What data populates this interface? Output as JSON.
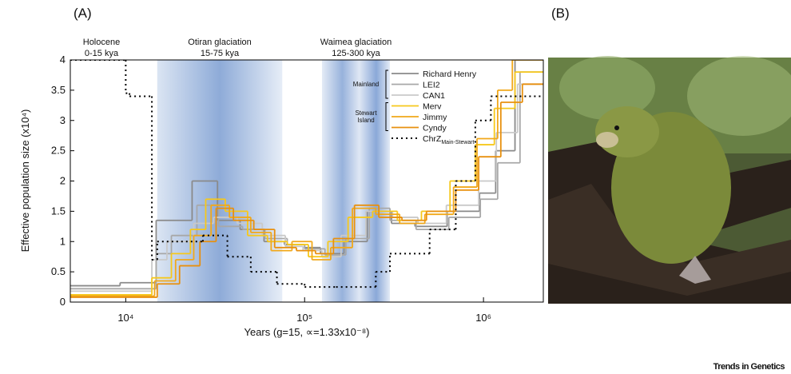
{
  "panel_a_label": "(A)",
  "panel_b_label": "(B)",
  "footer": "Trends in Genetics",
  "chart_data": {
    "type": "step-line",
    "x_label": "Years (g=15, ∝=1.33x10⁻⁸)",
    "y_label": "Effective population size (x10⁴)",
    "log_x": true,
    "xlim": [
      4900,
      2160000
    ],
    "xticks": [
      {
        "value": 10000,
        "label": "10⁴"
      },
      {
        "value": 100000,
        "label": "10⁵"
      },
      {
        "value": 1000000,
        "label": "10⁶"
      }
    ],
    "ylim": [
      0,
      4
    ],
    "yticks": [
      0,
      0.5,
      1,
      1.5,
      2,
      2.5,
      3,
      3.5,
      4
    ],
    "periods": [
      {
        "name": "Holocene",
        "range": "0-15 kya"
      },
      {
        "name": "Otiran glaciation",
        "range": "15-75 kya",
        "start": 15000,
        "end": 75000
      },
      {
        "name": "Waimea glaciation",
        "range": "125-300 kya",
        "start": 125000,
        "end": 300000
      }
    ],
    "legend_groups": [
      {
        "label": "Mainland"
      },
      {
        "label": "Stewart Island"
      }
    ],
    "series": [
      {
        "name": "Richard Henry",
        "color": "#8a8a8a",
        "x": [
          4900,
          9300,
          14800,
          23500,
          32600,
          43600,
          59300,
          77100,
          100000,
          122700,
          166000,
          224000,
          306000,
          414000,
          626000,
          950000,
          1170000,
          1500000
        ],
        "values": [
          0.27,
          0.32,
          1.35,
          2.0,
          1.35,
          1.2,
          1.0,
          0.95,
          0.9,
          0.8,
          1.0,
          1.5,
          1.3,
          1.25,
          1.5,
          1.8,
          2.5,
          4.0
        ]
      },
      {
        "name": "LEI2",
        "color": "#a8a8a8",
        "x": [
          4900,
          14800,
          18000,
          25000,
          33000,
          45000,
          60000,
          80000,
          100000,
          130000,
          170000,
          230000,
          300000,
          420000,
          640000,
          960000,
          1200000,
          1600000
        ],
        "values": [
          0.22,
          0.8,
          1.1,
          1.6,
          1.25,
          1.2,
          1.05,
          0.95,
          0.88,
          0.78,
          1.05,
          1.55,
          1.35,
          1.2,
          1.4,
          1.7,
          2.3,
          3.8
        ]
      },
      {
        "name": "CAN1",
        "color": "#c9c9c9",
        "x": [
          4900,
          14000,
          17000,
          24000,
          31000,
          42000,
          58000,
          78000,
          98000,
          125000,
          160000,
          220000,
          310000,
          430000,
          620000,
          940000,
          1180000,
          1550000
        ],
        "values": [
          0.18,
          0.7,
          1.0,
          1.3,
          1.4,
          1.3,
          1.1,
          0.92,
          0.85,
          0.75,
          1.1,
          1.5,
          1.4,
          1.3,
          1.6,
          2.0,
          2.8,
          3.6
        ]
      },
      {
        "name": "Merv",
        "color": "#f6c81c",
        "x": [
          4900,
          14000,
          18000,
          23000,
          28000,
          36000,
          48000,
          62000,
          80000,
          105000,
          135000,
          175000,
          240000,
          330000,
          450000,
          650000,
          900000,
          1150000,
          1500000
        ],
        "values": [
          0.12,
          0.4,
          0.8,
          1.2,
          1.7,
          1.5,
          1.1,
          1.0,
          0.95,
          0.75,
          1.0,
          1.4,
          1.5,
          1.35,
          1.5,
          2.0,
          2.6,
          3.2,
          3.8
        ]
      },
      {
        "name": "Jimmy",
        "color": "#f1a81a",
        "x": [
          4900,
          14500,
          19000,
          24000,
          30000,
          38000,
          50000,
          65000,
          85000,
          110000,
          140000,
          185000,
          250000,
          340000,
          470000,
          680000,
          920000,
          1200000,
          1450000
        ],
        "values": [
          0.1,
          0.35,
          0.7,
          1.1,
          1.6,
          1.4,
          1.15,
          0.85,
          1.0,
          0.7,
          0.9,
          1.55,
          1.45,
          1.3,
          1.45,
          1.9,
          2.7,
          3.5,
          4.0
        ]
      },
      {
        "name": "Cyndy",
        "color": "#e8900f",
        "x": [
          4900,
          15000,
          20000,
          26000,
          32000,
          40000,
          52000,
          68000,
          90000,
          115000,
          145000,
          190000,
          260000,
          350000,
          480000,
          700000,
          940000,
          1250000,
          1650000
        ],
        "values": [
          0.08,
          0.3,
          0.6,
          1.0,
          1.55,
          1.35,
          1.2,
          0.9,
          0.85,
          0.8,
          1.05,
          1.6,
          1.4,
          1.35,
          1.5,
          1.85,
          2.4,
          3.3,
          3.6
        ]
      },
      {
        "name": "ChrZ",
        "name_sub": "Main-Stewart",
        "color": "#000000",
        "dashed": true,
        "x": [
          4900,
          10000,
          10500,
          14000,
          15000,
          27000,
          37000,
          50000,
          70000,
          100000,
          150000,
          250000,
          300000,
          500000,
          700000,
          900000,
          1100000
        ],
        "values": [
          4.0,
          3.45,
          3.4,
          0.7,
          1.0,
          1.1,
          0.75,
          0.5,
          0.3,
          0.25,
          0.25,
          0.5,
          0.8,
          1.2,
          2.0,
          3.0,
          3.4
        ]
      }
    ]
  }
}
